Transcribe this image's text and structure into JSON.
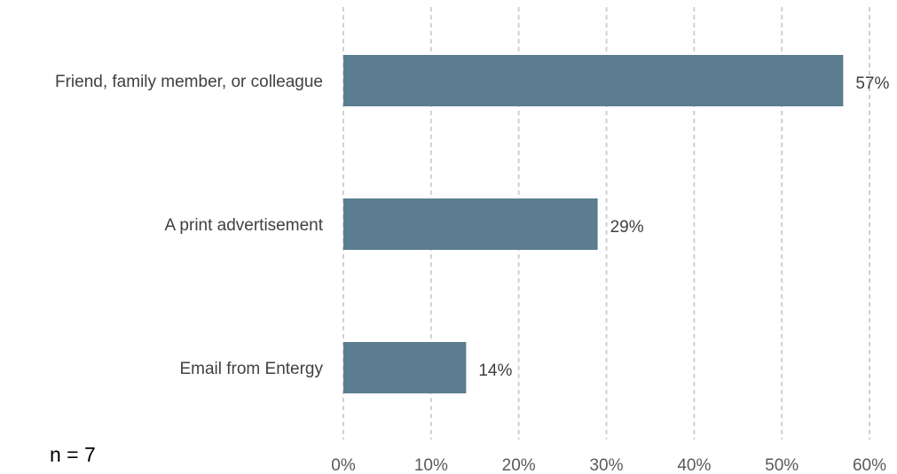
{
  "chart_data": {
    "type": "bar",
    "orientation": "horizontal",
    "title": "",
    "xlabel": "",
    "ylabel": "",
    "categories": [
      "Friend, family member, or colleague",
      "A print advertisement",
      "Email from Entergy"
    ],
    "values": [
      57,
      29,
      14
    ],
    "data_labels": [
      "57%",
      "29%",
      "14%"
    ],
    "xlim": [
      0,
      60
    ],
    "x_ticks": [
      0,
      10,
      20,
      30,
      40,
      50,
      60
    ],
    "x_tick_labels": [
      "0%",
      "10%",
      "20%",
      "30%",
      "40%",
      "50%",
      "60%"
    ],
    "bar_color": "#5b7d8f",
    "grid": true,
    "legend": "none"
  },
  "note": "n = 7"
}
